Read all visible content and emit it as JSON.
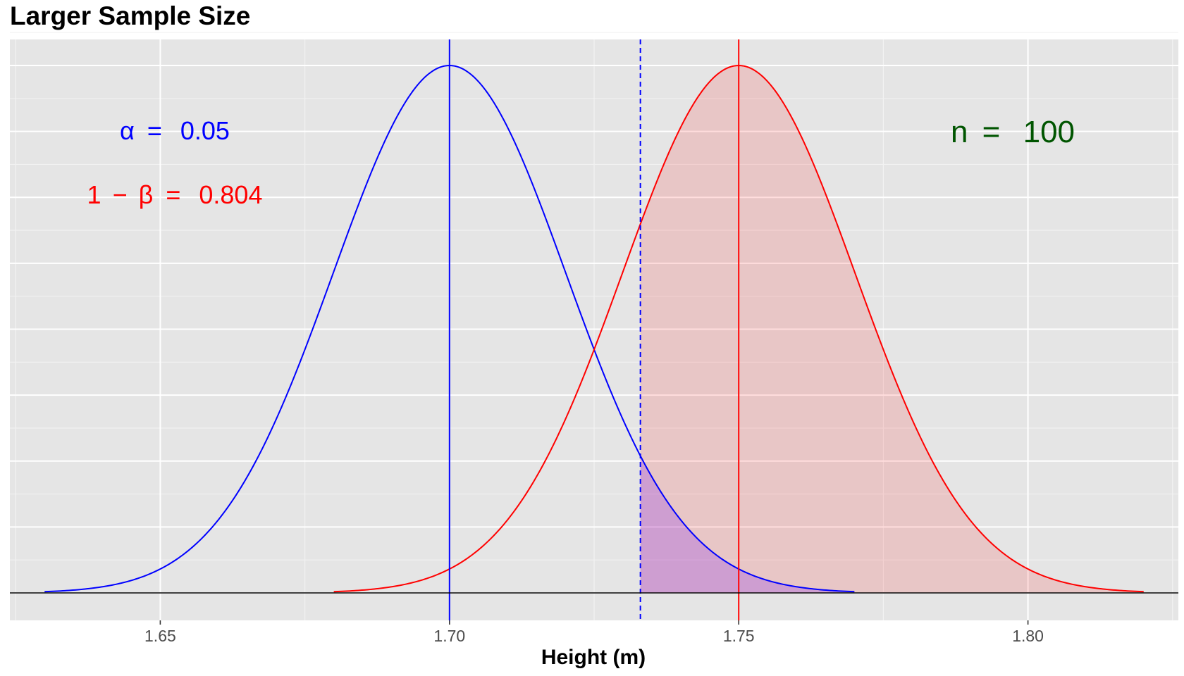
{
  "title": "Larger Sample Size",
  "chart_data": {
    "type": "area",
    "title": "Larger Sample Size",
    "xlabel": "Height (m)",
    "ylabel": "",
    "xlim": [
      1.624,
      1.826
    ],
    "x_ticks": [
      "1.65",
      "1.70",
      "1.75",
      "1.80"
    ],
    "x_tick_values": [
      1.65,
      1.7,
      1.75,
      1.8
    ],
    "y_ticks_shown": false,
    "grid": true,
    "series": [
      {
        "distribution": "normal",
        "mean": 1.7,
        "sd": 0.0201,
        "x_range": [
          1.63,
          1.77
        ],
        "color": "#0000ff"
      },
      {
        "distribution": "normal",
        "mean": 1.75,
        "sd": 0.0201,
        "x_range": [
          1.68,
          1.82
        ],
        "color": "#ff0000"
      }
    ],
    "critical_value": 1.733,
    "critical_line_color": "#0000ff",
    "vlines": [
      {
        "x": 1.7,
        "color": "#0000ff"
      },
      {
        "x": 1.75,
        "color": "#ff0000"
      }
    ],
    "shaded_regions": [
      {
        "from": 1.733,
        "to": 1.82,
        "under": "series_2",
        "fill": "#ff000022"
      },
      {
        "from": 1.733,
        "to": 1.77,
        "under": "series_1",
        "fill": "#6a00ff33"
      }
    ],
    "annotations": {
      "alpha": {
        "symbol": "α",
        "eq": "=",
        "value": "0.05",
        "color": "#0000ff"
      },
      "power": {
        "prefix": "1",
        "minus": "−",
        "symbol": "β",
        "eq": "=",
        "value": "0.804",
        "color": "#ff0000"
      },
      "n": {
        "symbol": "n",
        "eq": "=",
        "value": "100",
        "color": "#005500"
      }
    }
  }
}
